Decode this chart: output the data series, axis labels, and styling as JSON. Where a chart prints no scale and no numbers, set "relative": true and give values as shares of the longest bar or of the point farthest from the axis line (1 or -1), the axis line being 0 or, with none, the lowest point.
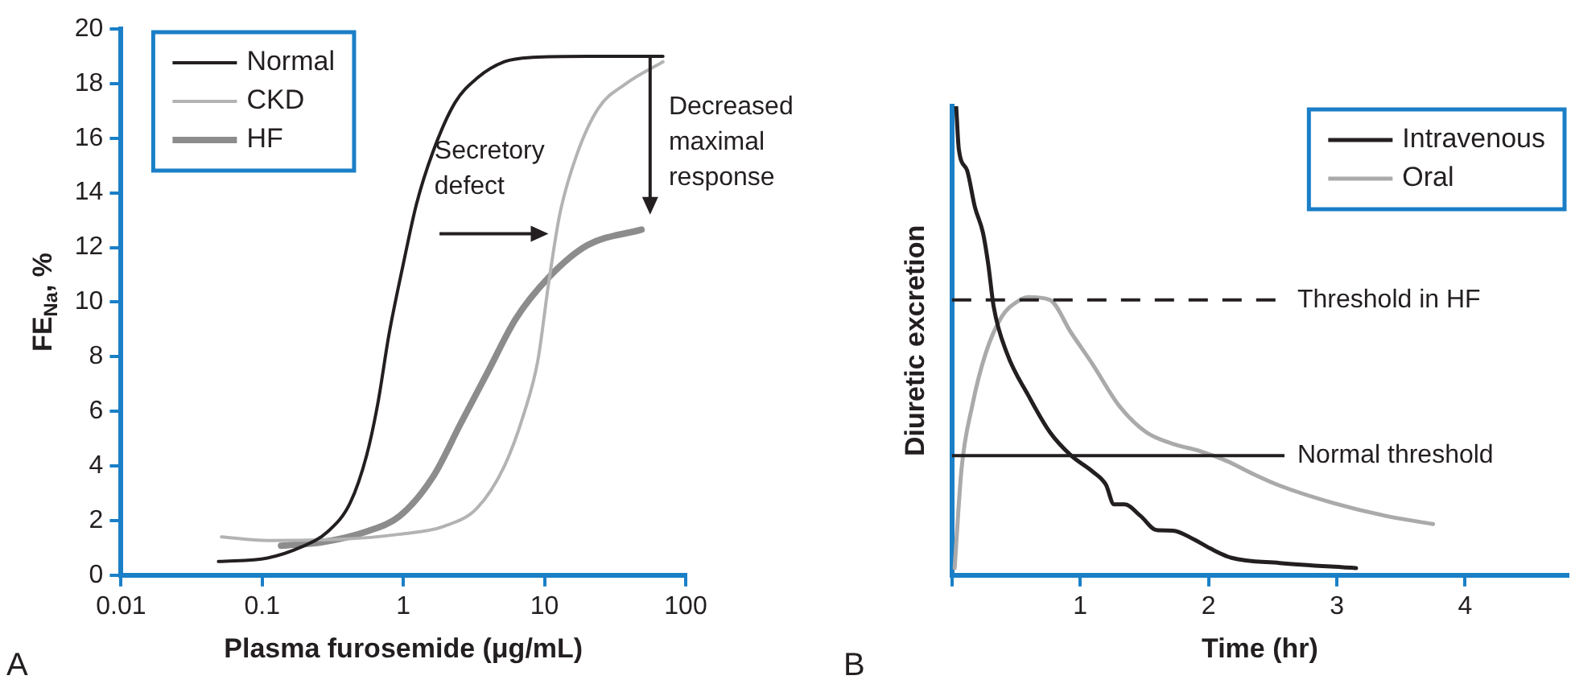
{
  "chart_data": [
    {
      "type": "line",
      "xlabel": "Plasma furosemide (μg/mL)",
      "ylabel": "FE$_{Na}$, %",
      "log": "x",
      "grid": false,
      "legend": "top left",
      "xlim": [
        0.01,
        100
      ],
      "xticks": [
        0.01,
        0.1,
        1,
        10,
        100
      ],
      "ylim": [
        0,
        20
      ],
      "yticks": [
        0,
        2,
        4,
        6,
        8,
        10,
        12,
        14,
        16,
        18,
        20
      ],
      "annotations": [
        "Secretory defect",
        "Decreased maximal response",
        "A"
      ],
      "series": [
        {
          "name": "Normal",
          "color": "#231f20",
          "x": [
            0.049,
            0.109,
            0.187,
            0.292,
            0.42,
            0.55,
            0.66,
            0.79,
            0.99,
            1.24,
            1.62,
            2.32,
            3.33,
            5.2,
            8.2,
            20.1,
            69
          ],
          "values": [
            0.5,
            0.63,
            1.02,
            1.6,
            2.65,
            4.4,
            6.3,
            8.8,
            11.3,
            13.6,
            15.5,
            17.3,
            18.2,
            18.8,
            18.96,
            19.0,
            19.0
          ]
        },
        {
          "name": "CKD",
          "color": "#b3b3b3",
          "x": [
            0.0515,
            0.109,
            0.35,
            0.944,
            1.94,
            3.33,
            5.2,
            7.15,
            8.96,
            10.7,
            12.8,
            16.8,
            24.1,
            37.8,
            69
          ],
          "values": [
            1.4,
            1.27,
            1.31,
            1.5,
            1.79,
            2.46,
            4.0,
            5.92,
            7.85,
            10.7,
            13.2,
            15.35,
            17.1,
            18.0,
            18.8
          ]
        },
        {
          "name": "HF",
          "color": "#8c8c8c",
          "x": [
            0.136,
            0.267,
            0.55,
            0.944,
            1.62,
            2.54,
            3.98,
            6.25,
            10.7,
            20.1,
            48.6
          ],
          "values": [
            1.08,
            1.21,
            1.6,
            2.17,
            3.6,
            5.54,
            7.46,
            9.38,
            10.9,
            12.08,
            12.65
          ]
        }
      ]
    },
    {
      "type": "line",
      "relative": true,
      "xlabel": "Time (hr)",
      "ylabel": "Diuretic excretion",
      "grid": false,
      "legend": "top right",
      "tick_labels": "x",
      "xlim": [
        0,
        4.8
      ],
      "xticks": [
        {
          "value": 0,
          "label": null
        },
        1,
        2,
        3,
        4
      ],
      "ref_lines": [
        {
          "axis": "y",
          "value": 0.587,
          "label": "Threshold in HF",
          "color": "#231f20",
          "line_style": "dashed"
        },
        {
          "axis": "y",
          "value": 0.255,
          "label": "Normal threshold",
          "color": "#231f20",
          "line_style": "solid"
        }
      ],
      "annotations": [
        "B"
      ],
      "series": [
        {
          "name": "Intravenous",
          "color": "#231f20",
          "x": [
            0.033,
            0.054,
            0.117,
            0.179,
            0.242,
            0.283,
            0.325,
            0.429,
            0.596,
            0.763,
            0.929,
            1.096,
            1.2,
            1.263,
            1.346,
            1.471,
            1.596,
            1.721,
            1.888,
            2.013,
            2.179,
            2.554,
            3.15
          ],
          "values": [
            1.0,
            0.908,
            0.864,
            0.785,
            0.73,
            0.663,
            0.573,
            0.473,
            0.383,
            0.305,
            0.255,
            0.221,
            0.193,
            0.151,
            0.151,
            0.126,
            0.096,
            0.095,
            0.076,
            0.057,
            0.037,
            0.026,
            0.015
          ]
        },
        {
          "name": "Oral",
          "color": "#aaaaaa",
          "x": [
            0.021,
            0.075,
            0.158,
            0.263,
            0.388,
            0.513,
            0.596,
            0.763,
            0.929,
            1.096,
            1.304,
            1.513,
            1.721,
            1.929,
            2.138,
            2.346,
            2.554,
            2.971,
            3.388,
            3.75
          ],
          "values": [
            0.015,
            0.227,
            0.361,
            0.473,
            0.551,
            0.584,
            0.593,
            0.587,
            0.517,
            0.45,
            0.361,
            0.305,
            0.28,
            0.265,
            0.244,
            0.216,
            0.191,
            0.154,
            0.126,
            0.109
          ]
        }
      ]
    }
  ]
}
